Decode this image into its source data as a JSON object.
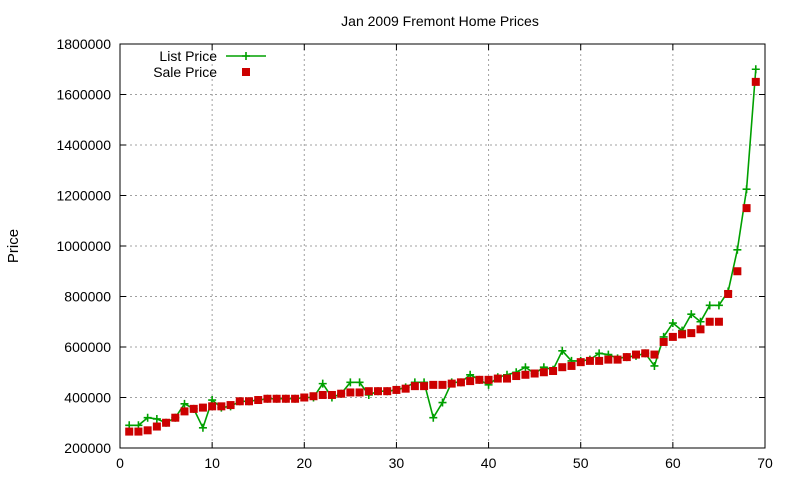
{
  "chart_data": {
    "type": "line",
    "title": "Jan 2009 Fremont Home Prices",
    "xlabel": "",
    "ylabel": "Price",
    "xlim": [
      0,
      70
    ],
    "ylim": [
      200000,
      1800000
    ],
    "xticks": [
      0,
      10,
      20,
      30,
      40,
      50,
      60,
      70
    ],
    "yticks": [
      200000,
      400000,
      600000,
      800000,
      1000000,
      1200000,
      1400000,
      1600000,
      1800000
    ],
    "grid": true,
    "legend_position": "top-left",
    "x": [
      1,
      2,
      3,
      4,
      5,
      6,
      7,
      8,
      9,
      10,
      11,
      12,
      13,
      14,
      15,
      16,
      17,
      18,
      19,
      20,
      21,
      22,
      23,
      24,
      25,
      26,
      27,
      28,
      29,
      30,
      31,
      32,
      33,
      34,
      35,
      36,
      37,
      38,
      39,
      40,
      41,
      42,
      43,
      44,
      45,
      46,
      47,
      48,
      49,
      50,
      51,
      52,
      53,
      54,
      55,
      56,
      57,
      58,
      59,
      60,
      61,
      62,
      63,
      64,
      65,
      66,
      67,
      68,
      69
    ],
    "series": [
      {
        "name": "List Price",
        "style": "line-plus",
        "color": "#00a000",
        "values": [
          290000,
          290000,
          320000,
          315000,
          300000,
          320000,
          375000,
          355000,
          280000,
          390000,
          360000,
          365000,
          385000,
          385000,
          390000,
          395000,
          395000,
          395000,
          395000,
          400000,
          400000,
          455000,
          400000,
          415000,
          460000,
          460000,
          410000,
          425000,
          425000,
          430000,
          440000,
          460000,
          460000,
          320000,
          380000,
          460000,
          460000,
          490000,
          470000,
          450000,
          480000,
          490000,
          500000,
          520000,
          495000,
          520000,
          510000,
          585000,
          545000,
          545000,
          550000,
          575000,
          570000,
          555000,
          560000,
          565000,
          575000,
          525000,
          640000,
          695000,
          665000,
          730000,
          700000,
          765000,
          765000,
          820000,
          985000,
          1225000,
          1700000
        ]
      },
      {
        "name": "Sale Price",
        "style": "squares",
        "color": "#cc0000",
        "values": [
          265000,
          265000,
          270000,
          285000,
          300000,
          320000,
          345000,
          355000,
          360000,
          365000,
          365000,
          370000,
          385000,
          385000,
          390000,
          395000,
          395000,
          395000,
          395000,
          400000,
          405000,
          410000,
          410000,
          415000,
          420000,
          420000,
          425000,
          425000,
          425000,
          430000,
          435000,
          445000,
          445000,
          450000,
          450000,
          455000,
          460000,
          465000,
          470000,
          470000,
          475000,
          475000,
          485000,
          490000,
          495000,
          500000,
          505000,
          520000,
          525000,
          540000,
          545000,
          545000,
          550000,
          550000,
          560000,
          570000,
          575000,
          570000,
          620000,
          640000,
          650000,
          655000,
          670000,
          700000,
          700000,
          810000,
          900000,
          1150000,
          1650000
        ]
      }
    ]
  }
}
